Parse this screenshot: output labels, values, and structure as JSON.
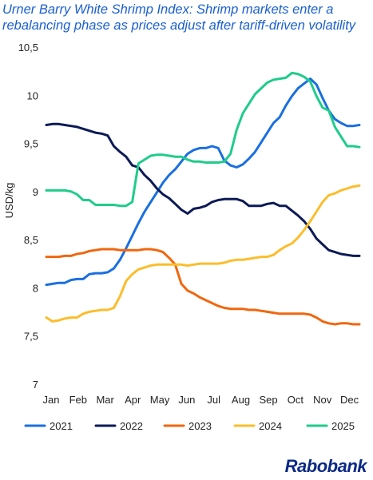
{
  "header": {
    "title": "Urner Barry White Shrimp Index: Shrimp markets enter a rebalancing phase as prices adjust after tariff-driven volatility"
  },
  "brand": {
    "name": "Rabobank"
  },
  "chart_data": {
    "type": "line",
    "title": "Urner Barry White Shrimp Index: Shrimp markets enter a rebalancing phase as prices adjust after tariff-driven volatility",
    "ylabel": "USD/kg",
    "xlabel": "",
    "ylim": [
      7,
      10.5
    ],
    "yticks": [
      7,
      7.5,
      8,
      8.5,
      9,
      9.5,
      10,
      10.5
    ],
    "ytick_labels": [
      "7",
      "7,5",
      "8",
      "8,5",
      "9",
      "9,5",
      "10",
      "10,5"
    ],
    "x_range": [
      0,
      51
    ],
    "x_ticks": [
      0,
      4.4,
      8.8,
      13.3,
      17.7,
      22.1,
      26.5,
      30.9,
      35.4,
      39.8,
      44.2,
      48.6
    ],
    "x_tick_labels": [
      "Jan",
      "Feb",
      "Mar",
      "Apr",
      "May",
      "Jun",
      "Jul",
      "Aug",
      "Sep",
      "Oct",
      "Nov",
      "Dec"
    ],
    "grid": false,
    "legend": "bottom",
    "series": [
      {
        "name": "2021",
        "color": "#1a6fe0",
        "values": [
          8.04,
          8.05,
          8.06,
          8.06,
          8.09,
          8.1,
          8.1,
          8.15,
          8.16,
          8.16,
          8.17,
          8.21,
          8.3,
          8.42,
          8.55,
          8.68,
          8.8,
          8.9,
          9.0,
          9.1,
          9.18,
          9.24,
          9.32,
          9.4,
          9.44,
          9.46,
          9.46,
          9.48,
          9.46,
          9.33,
          9.28,
          9.26,
          9.29,
          9.35,
          9.42,
          9.52,
          9.62,
          9.72,
          9.78,
          9.9,
          10.0,
          10.08,
          10.13,
          10.18,
          10.12,
          9.98,
          9.85,
          9.76,
          9.72,
          9.69,
          9.69,
          9.7
        ]
      },
      {
        "name": "2022",
        "color": "#0c1a55",
        "values": [
          9.7,
          9.71,
          9.71,
          9.7,
          9.69,
          9.68,
          9.66,
          9.64,
          9.62,
          9.61,
          9.59,
          9.48,
          9.42,
          9.37,
          9.28,
          9.26,
          9.18,
          9.12,
          9.04,
          8.98,
          8.94,
          8.88,
          8.82,
          8.78,
          8.83,
          8.84,
          8.86,
          8.9,
          8.92,
          8.93,
          8.93,
          8.93,
          8.91,
          8.86,
          8.86,
          8.86,
          8.88,
          8.89,
          8.86,
          8.86,
          8.81,
          8.76,
          8.7,
          8.62,
          8.52,
          8.46,
          8.4,
          8.38,
          8.36,
          8.35,
          8.34,
          8.34
        ]
      },
      {
        "name": "2023",
        "color": "#f0670f",
        "values": [
          8.33,
          8.33,
          8.33,
          8.34,
          8.34,
          8.36,
          8.37,
          8.39,
          8.4,
          8.41,
          8.41,
          8.41,
          8.4,
          8.4,
          8.4,
          8.4,
          8.41,
          8.41,
          8.4,
          8.38,
          8.32,
          8.25,
          8.05,
          7.98,
          7.95,
          7.91,
          7.88,
          7.85,
          7.82,
          7.8,
          7.79,
          7.79,
          7.79,
          7.78,
          7.78,
          7.77,
          7.76,
          7.75,
          7.74,
          7.74,
          7.74,
          7.74,
          7.74,
          7.73,
          7.7,
          7.66,
          7.64,
          7.63,
          7.64,
          7.64,
          7.63,
          7.63
        ]
      },
      {
        "name": "2024",
        "color": "#fcbd2c",
        "values": [
          7.7,
          7.66,
          7.67,
          7.69,
          7.7,
          7.7,
          7.74,
          7.76,
          7.77,
          7.78,
          7.78,
          7.8,
          7.92,
          8.08,
          8.15,
          8.2,
          8.22,
          8.24,
          8.25,
          8.25,
          8.25,
          8.25,
          8.25,
          8.24,
          8.25,
          8.26,
          8.26,
          8.26,
          8.26,
          8.27,
          8.29,
          8.3,
          8.3,
          8.31,
          8.32,
          8.33,
          8.33,
          8.35,
          8.4,
          8.44,
          8.47,
          8.53,
          8.61,
          8.7,
          8.8,
          8.9,
          8.97,
          8.99,
          9.02,
          9.04,
          9.06,
          9.07
        ]
      },
      {
        "name": "2025",
        "color": "#1fcc8b",
        "values": [
          9.02,
          9.02,
          9.02,
          9.02,
          9.01,
          8.98,
          8.92,
          8.92,
          8.87,
          8.87,
          8.87,
          8.87,
          8.86,
          8.86,
          8.9,
          9.3,
          9.34,
          9.38,
          9.39,
          9.39,
          9.38,
          9.37,
          9.37,
          9.34,
          9.32,
          9.32,
          9.31,
          9.31,
          9.31,
          9.32,
          9.4,
          9.65,
          9.82,
          9.92,
          10.02,
          10.08,
          10.14,
          10.17,
          10.18,
          10.19,
          10.24,
          10.23,
          10.2,
          10.15,
          10.0,
          9.88,
          9.85,
          9.68,
          9.58,
          9.48,
          9.48,
          9.47
        ]
      }
    ]
  }
}
